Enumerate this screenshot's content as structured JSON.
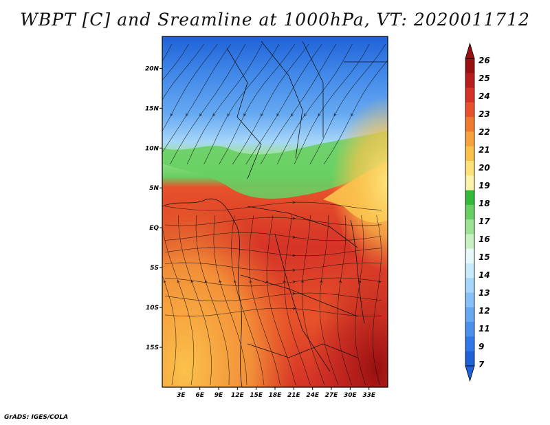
{
  "title": "WBPT [C] and Sreamline at 1000hPa, VT: 2020011712",
  "footer": "GrADS: IGES/COLA",
  "map": {
    "lon_range": [
      0,
      36
    ],
    "lat_range": [
      -20,
      24
    ],
    "lon_ticks": [
      "3E",
      "6E",
      "9E",
      "12E",
      "15E",
      "18E",
      "21E",
      "24E",
      "27E",
      "30E",
      "33E"
    ],
    "lon_tick_values": [
      3,
      6,
      9,
      12,
      15,
      18,
      21,
      24,
      27,
      30,
      33
    ],
    "lat_ticks": [
      "20N",
      "15N",
      "10N",
      "5N",
      "EQ",
      "5S",
      "10S",
      "15S"
    ],
    "lat_tick_values": [
      20,
      15,
      10,
      5,
      0,
      -5,
      -10,
      -15
    ]
  },
  "colorbar": {
    "labels": [
      "7",
      "9",
      "11",
      "12",
      "13",
      "14",
      "15",
      "16",
      "17",
      "18",
      "19",
      "20",
      "21",
      "22",
      "23",
      "24",
      "25",
      "26"
    ],
    "colors": [
      "#1f62d8",
      "#2f78e8",
      "#4a91ee",
      "#66a9f2",
      "#85c0f6",
      "#a6d6f9",
      "#c8ebfb",
      "#e6f8fa",
      "#c9f0c0",
      "#9ee294",
      "#68cf63",
      "#35b93b",
      "#fdf3ab",
      "#fde27a",
      "#fbc24b",
      "#f7a23c",
      "#f07a2e",
      "#e7522a",
      "#d53327",
      "#b81d1d",
      "#981010"
    ]
  }
}
